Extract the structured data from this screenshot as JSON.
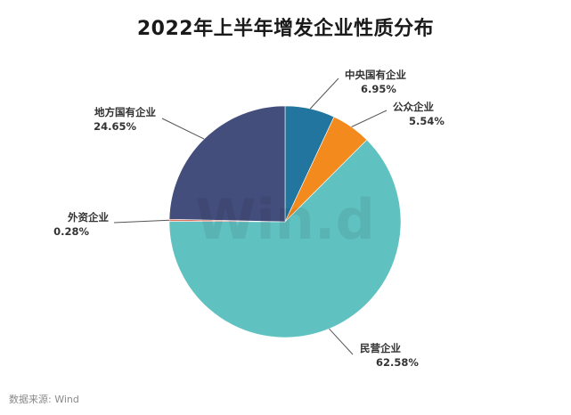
{
  "title": "2022年上半年增发企业性质分布",
  "watermark": "Win.d",
  "source": "数据来源: Wind",
  "chart_data": {
    "type": "pie",
    "title": "2022年上半年增发企业性质分布",
    "unit": "%",
    "start_angle_deg": 0,
    "direction": "clockwise",
    "slices": [
      {
        "label": "中央国有企业",
        "value": 6.95,
        "display": "6.95%",
        "color": "#21759f"
      },
      {
        "label": "公众企业",
        "value": 5.54,
        "display": "5.54%",
        "color": "#f28a1e"
      },
      {
        "label": "民营企业",
        "value": 62.58,
        "display": "62.58%",
        "color": "#60c1c1"
      },
      {
        "label": "外资企业",
        "value": 0.28,
        "display": "0.28%",
        "color": "#d9715f"
      },
      {
        "label": "地方国有企业",
        "value": 24.65,
        "display": "24.65%",
        "color": "#434e7c"
      }
    ]
  }
}
